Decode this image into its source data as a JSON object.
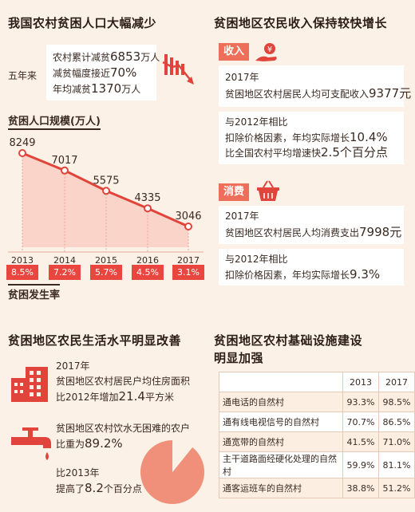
{
  "left_top": {
    "title": "我国农村贫困人口大幅减少",
    "five_year_label": "五年来",
    "stats": [
      {
        "prefix": "农村累计减贫",
        "value": "6853",
        "suffix": "万人"
      },
      {
        "prefix": "减贫幅度接近",
        "value": "70%",
        "suffix": ""
      },
      {
        "prefix": "年均减贫",
        "value": "1370",
        "suffix": "万人"
      }
    ],
    "chart_title": "贫困人口规模(万人)",
    "rate_title": "贫困发生率"
  },
  "chart_data": {
    "type": "line",
    "x": [
      "2013",
      "2014",
      "2015",
      "2016",
      "2017"
    ],
    "series": [
      {
        "values": [
          8249,
          7017,
          5575,
          4335,
          3046
        ]
      }
    ],
    "value_labels": [
      "8249",
      "7017",
      "5575",
      "4335",
      "3046"
    ],
    "poverty_rate": [
      "8.5%",
      "7.2%",
      "5.7%",
      "4.5%",
      "3.1%"
    ],
    "ylabel": "贫困人口规模(万人)",
    "colors": {
      "line": "#e0443a",
      "area": "#fad4c9",
      "points": "#ffffff"
    }
  },
  "income": {
    "title": "贫困地区农民收入保持较快增长",
    "tag": "收入",
    "lines1": [
      {
        "text": "2017年",
        "num": ""
      },
      {
        "text": "贫困地区农村居民人均可支配收入",
        "num": "9377元"
      }
    ],
    "lines2": [
      {
        "text": "与2012年相比",
        "num": ""
      },
      {
        "text": "扣除价格因素，年均实际增长",
        "num": "10.4%"
      },
      {
        "text": "比全国农村平均增速快",
        "num": "2.5个百分点"
      }
    ]
  },
  "consumption": {
    "tag": "消费",
    "lines1": [
      {
        "text": "2017年",
        "num": ""
      },
      {
        "text": "贫困地区农村居民人均消费支出",
        "num": "7998元"
      }
    ],
    "lines2": [
      {
        "text": "与2012年相比",
        "num": ""
      },
      {
        "text": "扣除价格因素，年均实际增长",
        "num": "9.3%"
      }
    ]
  },
  "living": {
    "title": "贫困地区农民生活水平明显改善",
    "housing": {
      "year": "2017年",
      "line1": "贫困地区农村居民户均住房面积",
      "line2_prefix": "比2012年增加",
      "line2_num": "21.4",
      "line2_suffix": "平方米"
    },
    "water": {
      "line1": "贫困地区农村饮水无困难的农户",
      "line2_prefix": "比重为",
      "line2_num": "89.2%",
      "line3": "比2013年",
      "line4_prefix": "提高了",
      "line4_num": "8.2",
      "line4_suffix": "个百分点"
    },
    "water_share": 89.2
  },
  "infra": {
    "title_line1": "贫困地区农村基础设施建设",
    "title_line2": "明显加强",
    "header": [
      "",
      "2013",
      "2017"
    ],
    "rows": [
      [
        "通电话的自然村",
        "93.3%",
        "98.5%"
      ],
      [
        "通有线电视信号的自然村",
        "70.7%",
        "86.5%"
      ],
      [
        "通宽带的自然村",
        "41.5%",
        "71.0%"
      ],
      [
        "主干道路面经硬化处理的自然村",
        "59.9%",
        "81.1%"
      ],
      [
        "通客运班车的自然村",
        "38.8%",
        "51.2%"
      ]
    ]
  }
}
